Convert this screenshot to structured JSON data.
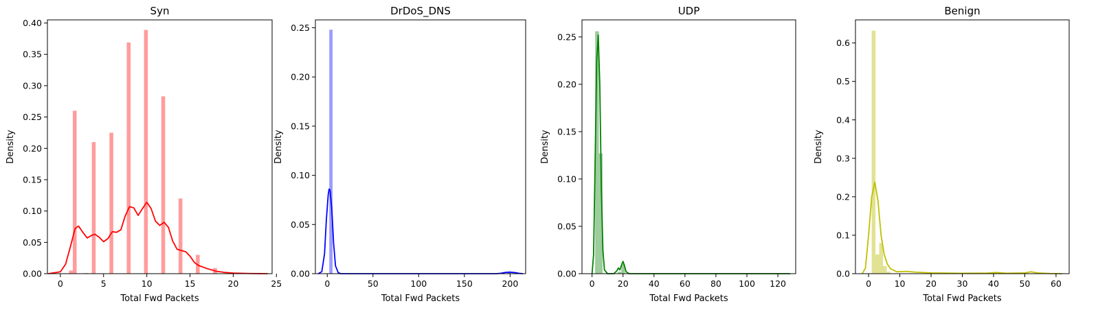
{
  "chart_data": [
    {
      "type": "histogram_kde",
      "title": "Syn",
      "xlabel": "Total Fwd Packets",
      "ylabel": "Density",
      "xlim": [
        -1.5,
        24.5
      ],
      "ylim": [
        0,
        0.405
      ],
      "xticks": [
        0,
        5,
        10,
        15,
        20,
        25
      ],
      "yticks": [
        0.0,
        0.05,
        0.1,
        0.15,
        0.2,
        0.25,
        0.3,
        0.35,
        0.4
      ],
      "ytick_decimals": 2,
      "color": "#ff0000",
      "bar_color": "#ff9c9c",
      "bar_width": 0.44,
      "bars": [
        [
          1.22,
          0.005
        ],
        [
          1.66,
          0.26
        ],
        [
          2.98,
          0.001
        ],
        [
          3.86,
          0.21
        ],
        [
          5.9,
          0.225
        ],
        [
          7.9,
          0.369
        ],
        [
          9.9,
          0.389
        ],
        [
          11.9,
          0.283
        ],
        [
          13.9,
          0.12
        ],
        [
          15.9,
          0.03
        ],
        [
          17.9,
          0.009
        ],
        [
          19.9,
          0.002
        ]
      ],
      "kde": [
        [
          -1.4,
          0.0
        ],
        [
          0.0,
          0.003
        ],
        [
          0.6,
          0.015
        ],
        [
          1.2,
          0.045
        ],
        [
          1.7,
          0.072
        ],
        [
          2.1,
          0.076
        ],
        [
          2.6,
          0.066
        ],
        [
          3.1,
          0.057
        ],
        [
          3.6,
          0.061
        ],
        [
          4.0,
          0.063
        ],
        [
          4.5,
          0.058
        ],
        [
          5.0,
          0.051
        ],
        [
          5.5,
          0.056
        ],
        [
          6.0,
          0.067
        ],
        [
          6.5,
          0.066
        ],
        [
          7.0,
          0.07
        ],
        [
          7.5,
          0.092
        ],
        [
          8.0,
          0.107
        ],
        [
          8.5,
          0.105
        ],
        [
          9.0,
          0.093
        ],
        [
          9.5,
          0.104
        ],
        [
          10.0,
          0.114
        ],
        [
          10.5,
          0.104
        ],
        [
          11.0,
          0.084
        ],
        [
          11.5,
          0.077
        ],
        [
          12.0,
          0.082
        ],
        [
          12.5,
          0.074
        ],
        [
          13.0,
          0.052
        ],
        [
          13.5,
          0.039
        ],
        [
          14.0,
          0.037
        ],
        [
          14.5,
          0.035
        ],
        [
          15.0,
          0.028
        ],
        [
          15.5,
          0.018
        ],
        [
          16.0,
          0.013
        ],
        [
          17.0,
          0.008
        ],
        [
          18.0,
          0.004
        ],
        [
          19.0,
          0.002
        ],
        [
          20.0,
          0.001
        ],
        [
          22.0,
          0.0003
        ],
        [
          24.0,
          0.0
        ]
      ]
    },
    {
      "type": "histogram_kde",
      "title": "DrDoS_DNS",
      "xlabel": "Total Fwd Packets",
      "ylabel": "Density",
      "xlim": [
        -13,
        217
      ],
      "ylim": [
        0,
        0.258
      ],
      "xticks": [
        0,
        50,
        100,
        150,
        200
      ],
      "yticks": [
        0.0,
        0.05,
        0.1,
        0.15,
        0.2,
        0.25
      ],
      "ytick_decimals": 2,
      "color": "#0000ff",
      "bar_color": "#9c9cff",
      "bar_width": 3.6,
      "bars": [
        [
          4.0,
          0.248
        ],
        [
          199.0,
          0.002
        ]
      ],
      "kde": [
        [
          -10,
          0.0
        ],
        [
          -6,
          0.002
        ],
        [
          -3,
          0.02
        ],
        [
          -1,
          0.055
        ],
        [
          1,
          0.08
        ],
        [
          2,
          0.086
        ],
        [
          3,
          0.085
        ],
        [
          5,
          0.065
        ],
        [
          7,
          0.03
        ],
        [
          9,
          0.008
        ],
        [
          12,
          0.001
        ],
        [
          15,
          0.0
        ],
        [
          100,
          0.0
        ],
        [
          185,
          0.0
        ],
        [
          190,
          0.0004
        ],
        [
          195,
          0.0013
        ],
        [
          200,
          0.0016
        ],
        [
          205,
          0.0011
        ],
        [
          210,
          0.0003
        ],
        [
          214,
          0.0
        ]
      ]
    },
    {
      "type": "histogram_kde",
      "title": "UDP",
      "xlabel": "Total Fwd Packets",
      "ylabel": "Density",
      "xlim": [
        -6.5,
        131.5
      ],
      "ylim": [
        0,
        0.268
      ],
      "xticks": [
        0,
        20,
        40,
        60,
        80,
        100,
        120
      ],
      "yticks": [
        0.0,
        0.05,
        0.1,
        0.15,
        0.2,
        0.25
      ],
      "ytick_decimals": 2,
      "color": "#008000",
      "bar_color": "#9ccc9c",
      "bar_width": 2.4,
      "bars": [
        [
          3.2,
          0.256
        ],
        [
          5.6,
          0.127
        ],
        [
          17.7,
          0.002
        ],
        [
          20.1,
          0.01
        ]
      ],
      "kde": [
        [
          0.0,
          0.0
        ],
        [
          1.0,
          0.02
        ],
        [
          2.0,
          0.12
        ],
        [
          3.0,
          0.225
        ],
        [
          4.0,
          0.252
        ],
        [
          5.0,
          0.2
        ],
        [
          6.0,
          0.09
        ],
        [
          7.0,
          0.025
        ],
        [
          8.0,
          0.004
        ],
        [
          10.0,
          0.0
        ],
        [
          14.0,
          0.0
        ],
        [
          16.0,
          0.003
        ],
        [
          17.0,
          0.006
        ],
        [
          18.0,
          0.004
        ],
        [
          19.0,
          0.009
        ],
        [
          20.0,
          0.013
        ],
        [
          21.0,
          0.008
        ],
        [
          22.0,
          0.002
        ],
        [
          24.0,
          0.0
        ],
        [
          128.0,
          0.0
        ]
      ]
    },
    {
      "type": "histogram_kde",
      "title": "Benign",
      "xlabel": "Total Fwd Packets",
      "ylabel": "Density",
      "xlim": [
        -4.2,
        64.2
      ],
      "ylim": [
        0,
        0.66
      ],
      "xticks": [
        0,
        10,
        20,
        30,
        40,
        50,
        60
      ],
      "yticks": [
        0.0,
        0.1,
        0.2,
        0.3,
        0.4,
        0.5,
        0.6
      ],
      "ytick_decimals": 1,
      "color": "#bfbf00",
      "bar_color": "#e2e293",
      "bar_width": 1.2,
      "bars": [
        [
          1.6,
          0.632
        ],
        [
          2.8,
          0.05
        ],
        [
          4.0,
          0.08
        ],
        [
          5.2,
          0.02
        ],
        [
          6.4,
          0.005
        ]
      ],
      "kde": [
        [
          -2.0,
          0.0
        ],
        [
          -1.0,
          0.015
        ],
        [
          0.0,
          0.1
        ],
        [
          1.0,
          0.2
        ],
        [
          2.0,
          0.238
        ],
        [
          3.0,
          0.19
        ],
        [
          4.0,
          0.1
        ],
        [
          5.0,
          0.05
        ],
        [
          6.0,
          0.025
        ],
        [
          7.0,
          0.013
        ],
        [
          9.0,
          0.005
        ],
        [
          12.0,
          0.006
        ],
        [
          15.0,
          0.004
        ],
        [
          20.0,
          0.002
        ],
        [
          30.0,
          0.001
        ],
        [
          38.0,
          0.0015
        ],
        [
          41.0,
          0.003
        ],
        [
          44.0,
          0.001
        ],
        [
          50.0,
          0.002
        ],
        [
          52.0,
          0.005
        ],
        [
          54.0,
          0.002
        ],
        [
          58.0,
          0.0005
        ],
        [
          62.0,
          0.0
        ]
      ]
    }
  ]
}
